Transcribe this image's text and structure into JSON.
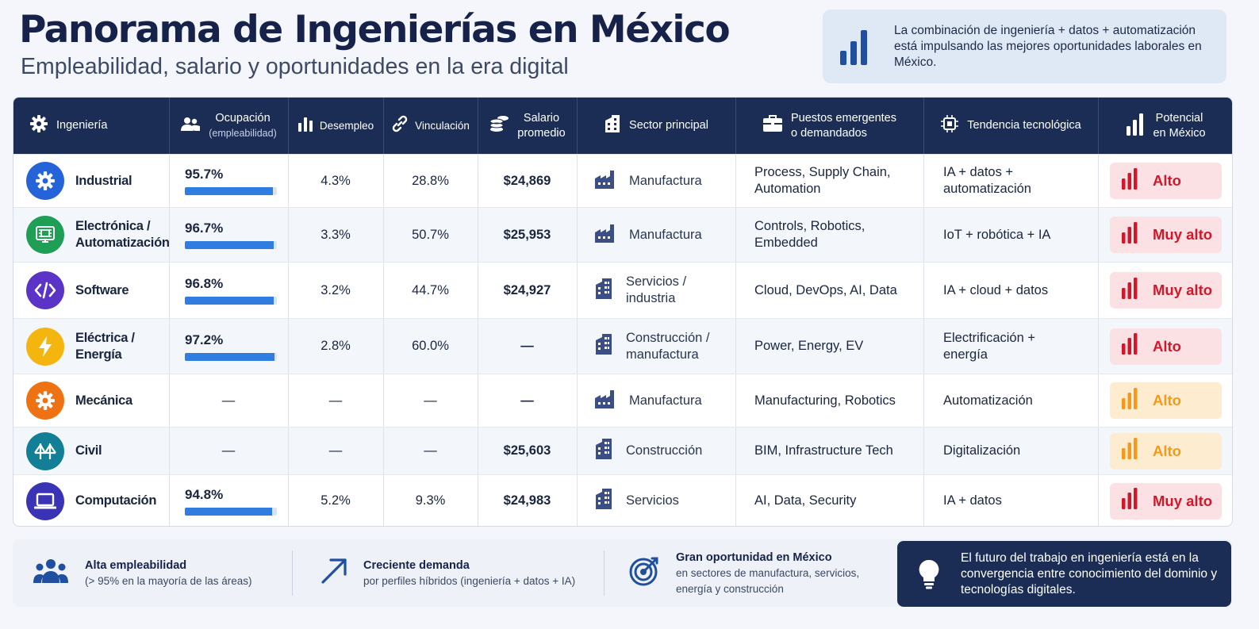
{
  "header": {
    "title": "Panorama de Ingenierías en México",
    "subtitle": "Empleabilidad, salario y oportunidades en la era digital"
  },
  "callout": {
    "icon": "bar-chart-icon",
    "text": "La combinación de ingeniería + datos + automatización está impulsando las mejores oportunidades laborales en México."
  },
  "table": {
    "headers": {
      "ingenieria": "Ingeniería",
      "ocupacion": "Ocupación",
      "ocupacion_sub": "(empleabilidad)",
      "desempleo": "Desempleo",
      "vinculacion": "Vinculación",
      "salario_1": "Salario",
      "salario_2": "promedio",
      "sector": "Sector principal",
      "puestos_1": "Puestos emergentes",
      "puestos_2": "o demandados",
      "tendencia": "Tendencia tecnológica",
      "potencial_1": "Potencial",
      "potencial_2": "en México"
    },
    "rows": [
      {
        "name_1": "Industrial",
        "name_2": "",
        "icon": "gear-icon",
        "color": "#2563d9",
        "ocupacion": "95.7%",
        "occ_value": 95.7,
        "desempleo": "4.3%",
        "vinculacion": "28.8%",
        "salario": "$24,869",
        "sector_icon": "factory-icon",
        "sector_1": "Manufactura",
        "sector_2": "",
        "puestos_1": "Process, Supply Chain,",
        "puestos_2": "Automation",
        "tend_1": "IA + datos +",
        "tend_2": "automatización",
        "potencial": "Alto",
        "pot_color": "red"
      },
      {
        "name_1": "Electrónica /",
        "name_2": "Automatización",
        "icon": "circuit-board-icon",
        "color": "#1f9e56",
        "ocupacion": "96.7%",
        "occ_value": 96.7,
        "desempleo": "3.3%",
        "vinculacion": "50.7%",
        "salario": "$25,953",
        "sector_icon": "factory-icon",
        "sector_1": "Manufactura",
        "sector_2": "",
        "puestos_1": "Controls, Robotics,",
        "puestos_2": "Embedded",
        "tend_1": "IoT + robótica + IA",
        "tend_2": "",
        "potencial": "Muy alto",
        "pot_color": "red"
      },
      {
        "name_1": "Software",
        "name_2": "",
        "icon": "code-icon",
        "color": "#5b33c7",
        "ocupacion": "96.8%",
        "occ_value": 96.8,
        "desempleo": "3.2%",
        "vinculacion": "44.7%",
        "salario": "$24,927",
        "sector_icon": "building-icon",
        "sector_1": "Servicios /",
        "sector_2": "industria",
        "puestos_1": "Cloud, DevOps, AI, Data",
        "puestos_2": "",
        "tend_1": "IA + cloud + datos",
        "tend_2": "",
        "potencial": "Muy alto",
        "pot_color": "red"
      },
      {
        "name_1": "Eléctrica /",
        "name_2": "Energía",
        "icon": "lightning-icon",
        "color": "#f5b50f",
        "ocupacion": "97.2%",
        "occ_value": 97.2,
        "desempleo": "2.8%",
        "vinculacion": "60.0%",
        "salario": "—",
        "sector_icon": "building-icon",
        "sector_1": "Construcción /",
        "sector_2": "manufactura",
        "puestos_1": "Power, Energy, EV",
        "puestos_2": "",
        "tend_1": "Electrificación +",
        "tend_2": "energía",
        "potencial": "Alto",
        "pot_color": "red"
      },
      {
        "name_1": "Mecánica",
        "name_2": "",
        "icon": "gear-icon",
        "color": "#ee7214",
        "ocupacion": "—",
        "occ_value": null,
        "desempleo": "—",
        "vinculacion": "—",
        "salario": "—",
        "sector_icon": "factory-icon",
        "sector_1": "Manufactura",
        "sector_2": "",
        "puestos_1": "Manufacturing, Robotics",
        "puestos_2": "",
        "tend_1": "Automatización",
        "tend_2": "",
        "potencial": "Alto",
        "pot_color": "orange"
      },
      {
        "name_1": "Civil",
        "name_2": "",
        "icon": "bridge-icon",
        "color": "#137f96",
        "ocupacion": "—",
        "occ_value": null,
        "desempleo": "—",
        "vinculacion": "—",
        "salario": "$25,603",
        "sector_icon": "building-icon",
        "sector_1": "Construcción",
        "sector_2": "",
        "puestos_1": "BIM, Infrastructure Tech",
        "puestos_2": "",
        "tend_1": "Digitalización",
        "tend_2": "",
        "potencial": "Alto",
        "pot_color": "orange"
      },
      {
        "name_1": "Computación",
        "name_2": "",
        "icon": "laptop-icon",
        "color": "#3b33b5",
        "ocupacion": "94.8%",
        "occ_value": 94.8,
        "desempleo": "5.2%",
        "vinculacion": "9.3%",
        "salario": "$24,983",
        "sector_icon": "building-icon",
        "sector_1": "Servicios",
        "sector_2": "",
        "puestos_1": "AI, Data, Security",
        "puestos_2": "",
        "tend_1": "IA + datos",
        "tend_2": "",
        "potencial": "Muy alto",
        "pot_color": "red"
      }
    ]
  },
  "footer": {
    "item1_title": "Alta empleabilidad",
    "item1_sub": "(> 95% en la mayoría de las áreas)",
    "item2_title": "Creciente demanda",
    "item2_sub": "por perfiles híbridos (ingeniería + datos + IA)",
    "item3_title": "Gran oportunidad en México",
    "item3_sub_1": "en sectores de manufactura, servicios,",
    "item3_sub_2": "energía y construcción",
    "box_text": "El futuro del trabajo en ingeniería está en la convergencia entre conocimiento del dominio y tecnologías digitales."
  },
  "colors": {
    "navy": "#1b2c55",
    "bar_blue": "#2f7de1",
    "high_red": "#d0182b",
    "high_orange": "#f39a1a"
  }
}
